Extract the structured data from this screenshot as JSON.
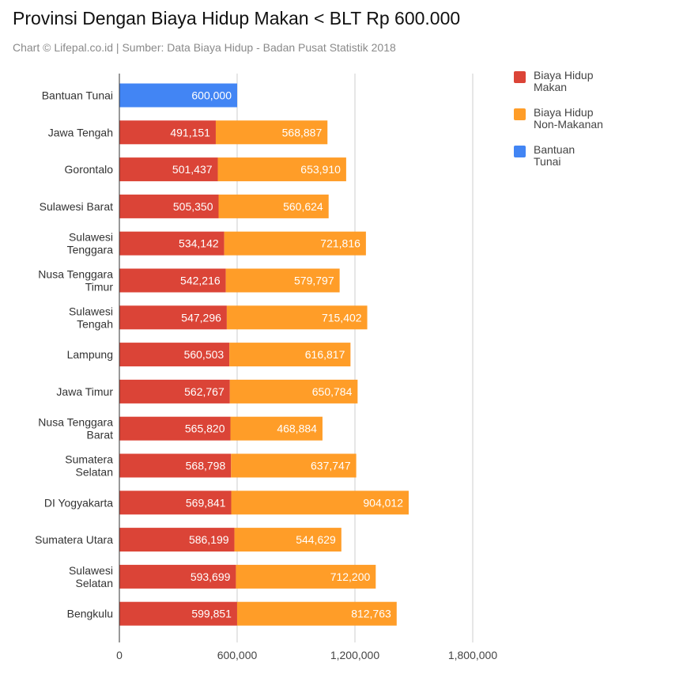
{
  "chart_data": {
    "type": "bar",
    "orientation": "horizontal",
    "stacked": true,
    "title": "Provinsi Dengan Biaya Hidup Makan < BLT Rp 600.000",
    "subtitle": "Chart © Lifepal.co.id | Sumber: Data Biaya Hidup - Badan Pusat Statistik 2018",
    "xlabel": "",
    "ylabel": "",
    "xlim": [
      0,
      1800000
    ],
    "xticks": [
      0,
      600000,
      1200000,
      1800000
    ],
    "xtick_labels": [
      "0",
      "600,000",
      "1,200,000",
      "1,800,000"
    ],
    "grid": true,
    "legend_position": "right",
    "categories": [
      "Bantuan Tunai",
      "Jawa Tengah",
      "Gorontalo",
      "Sulawesi Barat",
      "Sulawesi Tenggara",
      "Nusa Tenggara Timur",
      "Sulawesi Tengah",
      "Lampung",
      "Jawa Timur",
      "Nusa Tenggara Barat",
      "Sumatera Selatan",
      "DI Yogyakarta",
      "Sumatera Utara",
      "Sulawesi Selatan",
      "Bengkulu"
    ],
    "category_labels": [
      [
        "Bantuan Tunai"
      ],
      [
        "Jawa Tengah"
      ],
      [
        "Gorontalo"
      ],
      [
        "Sulawesi Barat"
      ],
      [
        "Sulawesi",
        "Tenggara"
      ],
      [
        "Nusa Tenggara",
        "Timur"
      ],
      [
        "Sulawesi",
        "Tengah"
      ],
      [
        "Lampung"
      ],
      [
        "Jawa Timur"
      ],
      [
        "Nusa Tenggara",
        "Barat"
      ],
      [
        "Sumatera",
        "Selatan"
      ],
      [
        "DI Yogyakarta"
      ],
      [
        "Sumatera Utara"
      ],
      [
        "Sulawesi",
        "Selatan"
      ],
      [
        "Bengkulu"
      ]
    ],
    "series": [
      {
        "name": "Biaya Hidup Makan",
        "name_lines": [
          "Biaya Hidup",
          "Makan"
        ],
        "color": "#db4437",
        "values": [
          null,
          491151,
          501437,
          505350,
          534142,
          542216,
          547296,
          560503,
          562767,
          565820,
          568798,
          569841,
          586199,
          593699,
          599851
        ],
        "labels": [
          "",
          "491,151",
          "501,437",
          "505,350",
          "534,142",
          "542,216",
          "547,296",
          "560,503",
          "562,767",
          "565,820",
          "568,798",
          "569,841",
          "586,199",
          "593,699",
          "599,851"
        ]
      },
      {
        "name": "Biaya Hidup Non-Makanan",
        "name_lines": [
          "Biaya Hidup",
          "Non-Makanan"
        ],
        "color": "#ff9d28",
        "values": [
          null,
          568887,
          653910,
          560624,
          721816,
          579797,
          715402,
          616817,
          650784,
          468884,
          637747,
          904012,
          544629,
          712200,
          812763
        ],
        "labels": [
          "",
          "568,887",
          "653,910",
          "560,624",
          "721,816",
          "579,797",
          "715,402",
          "616,817",
          "650,784",
          "468,884",
          "637,747",
          "904,012",
          "544,629",
          "712,200",
          "812,763"
        ]
      },
      {
        "name": "Bantuan Tunai",
        "name_lines": [
          "Bantuan",
          "Tunai"
        ],
        "color": "#4285f4",
        "values": [
          600000,
          null,
          null,
          null,
          null,
          null,
          null,
          null,
          null,
          null,
          null,
          null,
          null,
          null,
          null
        ],
        "labels": [
          "600,000",
          "",
          "",
          "",
          "",
          "",
          "",
          "",
          "",
          "",
          "",
          "",
          "",
          "",
          ""
        ]
      }
    ]
  }
}
